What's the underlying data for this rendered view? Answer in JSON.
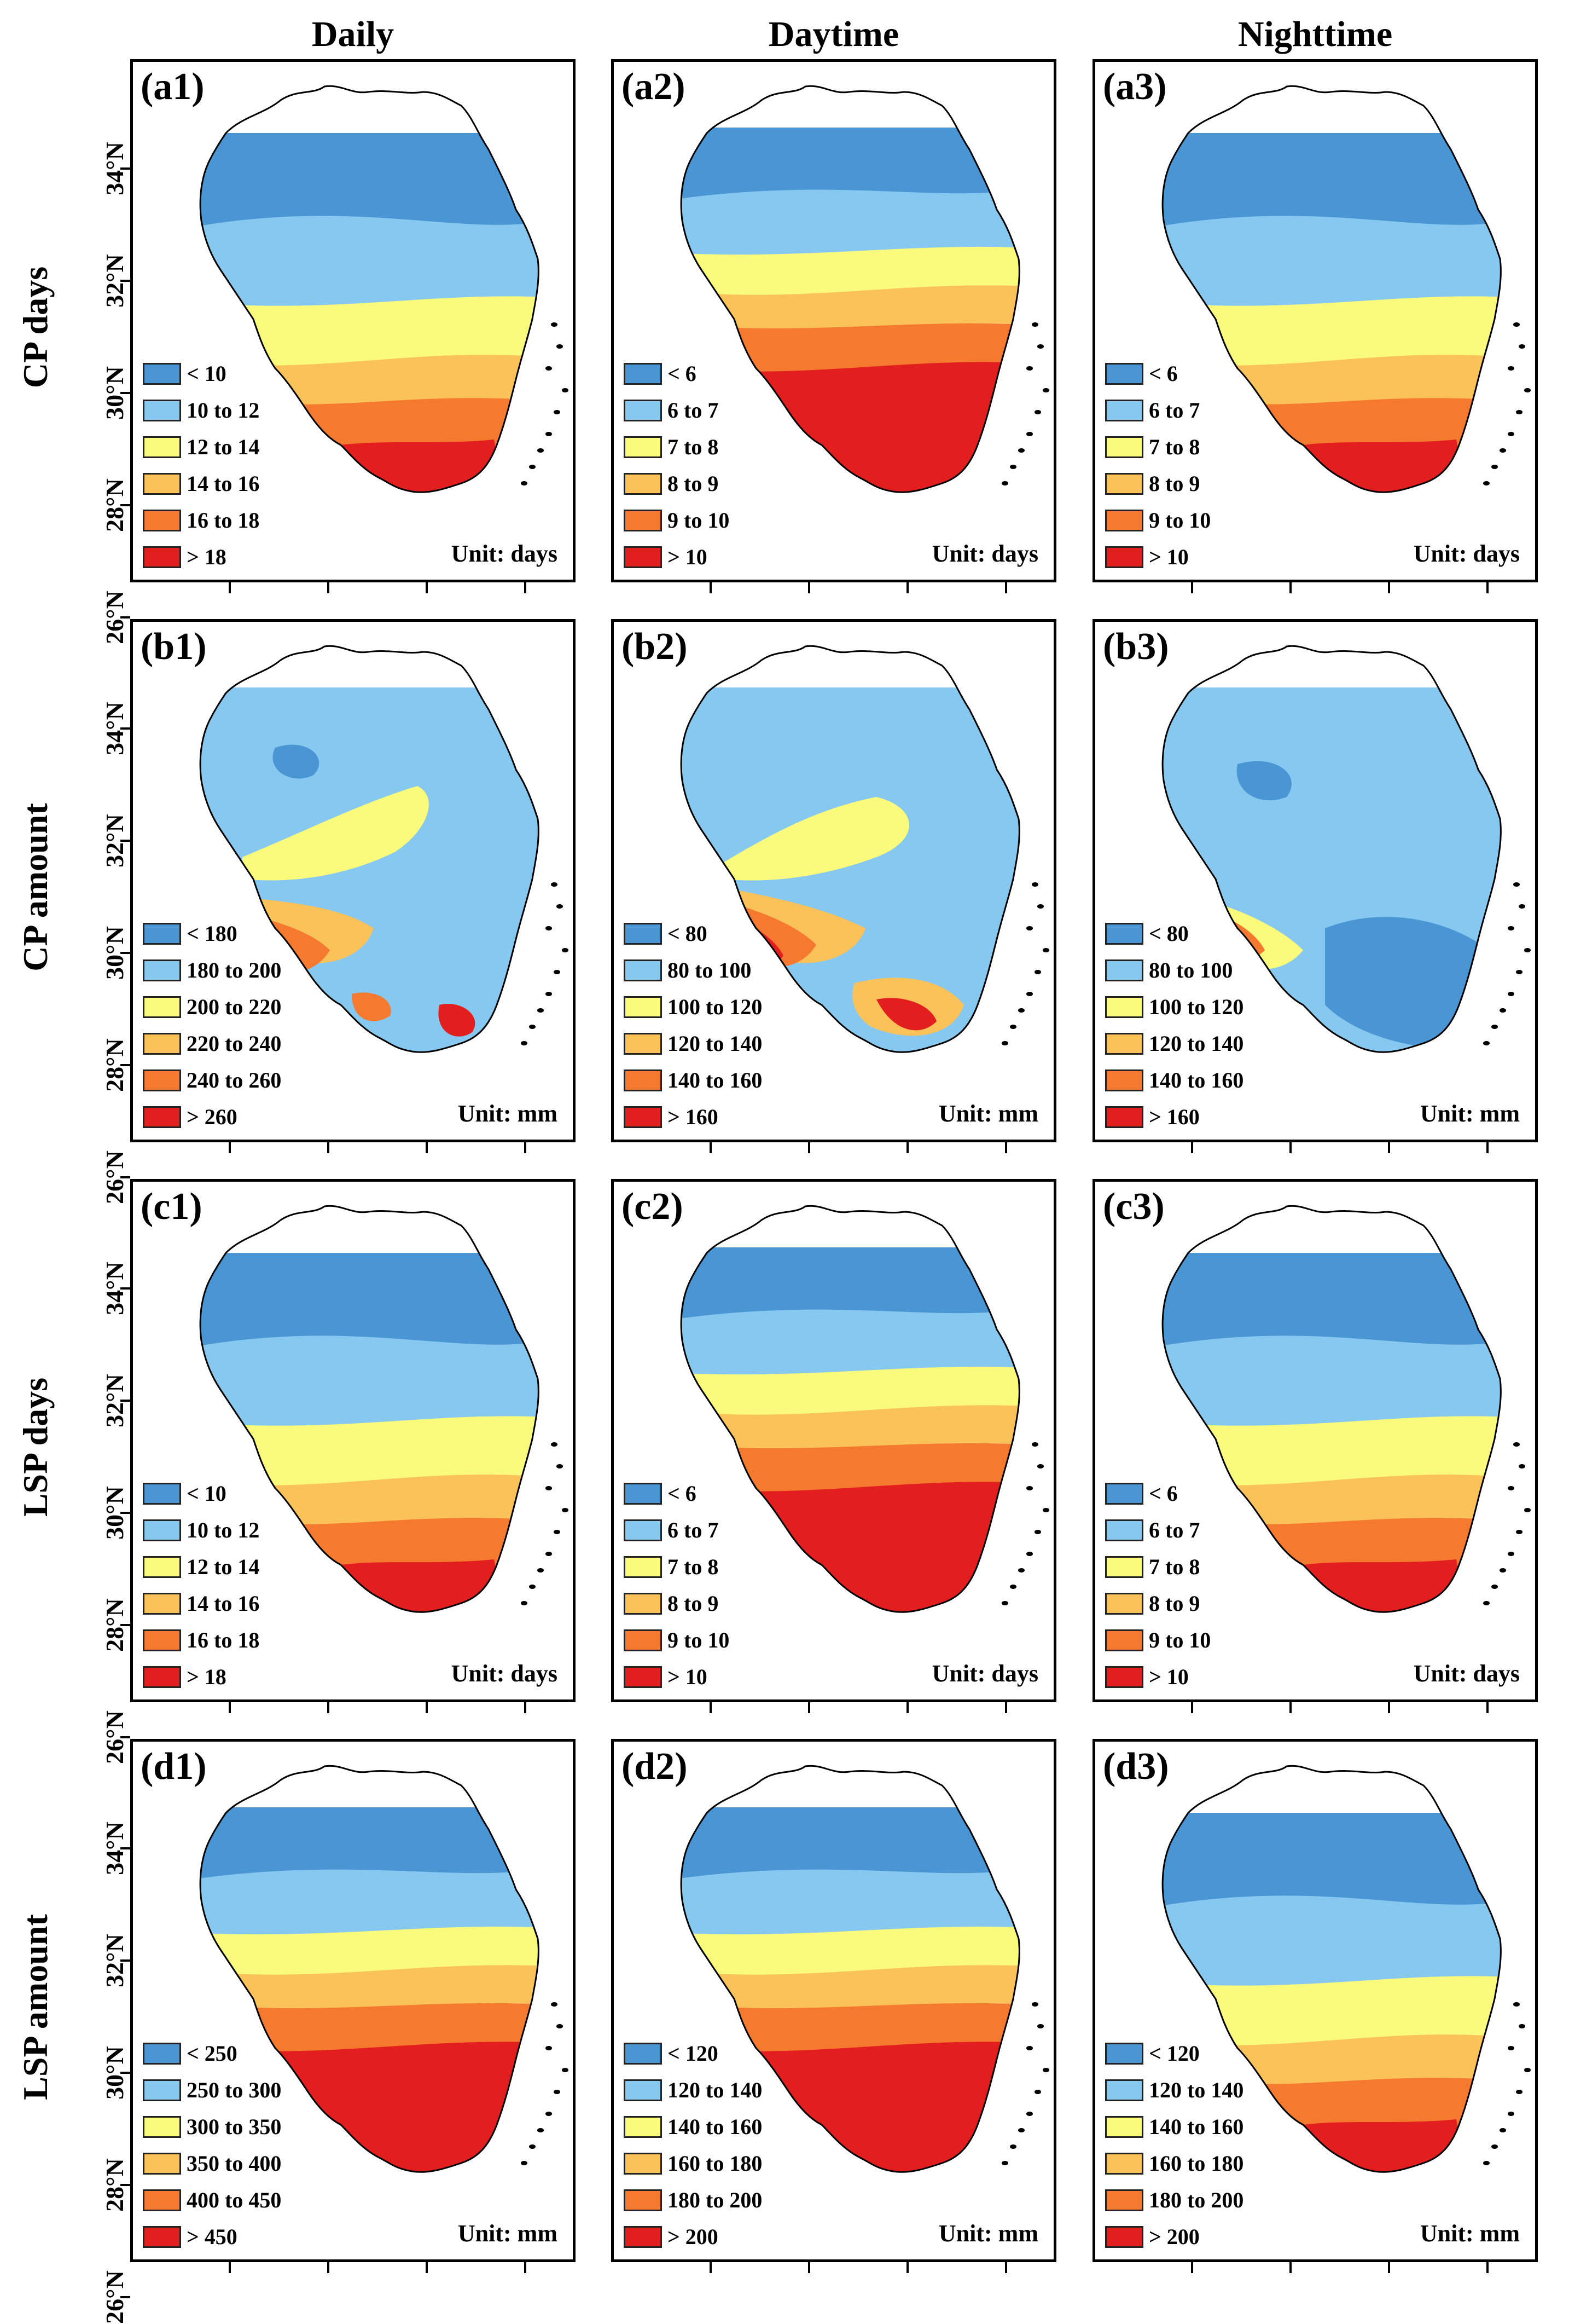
{
  "columns": [
    "Daily",
    "Daytime",
    "Nighttime"
  ],
  "rows": [
    "CP days",
    "CP amount",
    "LSP days",
    "LSP amount"
  ],
  "lat_ticks": [
    "34°N",
    "32°N",
    "30°N",
    "28°N",
    "26°N"
  ],
  "colors": [
    "#4a95d4",
    "#86c8ef",
    "#fafa7c",
    "#fbc25a",
    "#f57a30",
    "#e31e1e"
  ],
  "panels": [
    {
      "label": "(a1)",
      "unit": "Unit: days",
      "legend": [
        "< 10",
        "10 to 12",
        "12 to 14",
        "14 to 16",
        "16 to 18",
        "> 18"
      ],
      "pattern": "grad_south"
    },
    {
      "label": "(a2)",
      "unit": "Unit: days",
      "legend": [
        "< 6",
        "6 to 7",
        "7 to 8",
        "8 to 9",
        "9 to 10",
        "> 10"
      ],
      "pattern": "grad_south_strong"
    },
    {
      "label": "(a3)",
      "unit": "Unit: days",
      "legend": [
        "< 6",
        "6 to 7",
        "7 to 8",
        "8 to 9",
        "9 to 10",
        "> 10"
      ],
      "pattern": "grad_south"
    },
    {
      "label": "(b1)",
      "unit": "Unit: mm",
      "legend": [
        "< 180",
        "180 to 200",
        "200 to 220",
        "220 to 240",
        "240 to 260",
        "> 260"
      ],
      "pattern": "patchy_blue"
    },
    {
      "label": "(b2)",
      "unit": "Unit: mm",
      "legend": [
        "< 80",
        "80 to 100",
        "100 to 120",
        "120 to 140",
        "140 to 160",
        "> 160"
      ],
      "pattern": "patchy_mixed"
    },
    {
      "label": "(b3)",
      "unit": "Unit: mm",
      "legend": [
        "< 80",
        "80 to 100",
        "100 to 120",
        "120 to 140",
        "140 to 160",
        "> 160"
      ],
      "pattern": "mostly_blue"
    },
    {
      "label": "(c1)",
      "unit": "Unit: days",
      "legend": [
        "< 10",
        "10 to 12",
        "12 to 14",
        "14 to 16",
        "16 to 18",
        "> 18"
      ],
      "pattern": "grad_south"
    },
    {
      "label": "(c2)",
      "unit": "Unit: days",
      "legend": [
        "< 6",
        "6 to 7",
        "7 to 8",
        "8 to 9",
        "9 to 10",
        "> 10"
      ],
      "pattern": "grad_south_strong"
    },
    {
      "label": "(c3)",
      "unit": "Unit: days",
      "legend": [
        "< 6",
        "6 to 7",
        "7 to 8",
        "8 to 9",
        "9 to 10",
        "> 10"
      ],
      "pattern": "grad_south"
    },
    {
      "label": "(d1)",
      "unit": "Unit: mm",
      "legend": [
        "< 250",
        "250 to 300",
        "300 to 350",
        "350 to 400",
        "400 to 450",
        "> 450"
      ],
      "pattern": "grad_south_strong"
    },
    {
      "label": "(d2)",
      "unit": "Unit: mm",
      "legend": [
        "< 120",
        "120 to 140",
        "140 to 160",
        "160 to 180",
        "180 to 200",
        "> 200"
      ],
      "pattern": "grad_south_strong"
    },
    {
      "label": "(d3)",
      "unit": "Unit: mm",
      "legend": [
        "< 120",
        "120 to 140",
        "140 to 160",
        "160 to 180",
        "180 to 200",
        "> 200"
      ],
      "pattern": "grad_south"
    }
  ]
}
